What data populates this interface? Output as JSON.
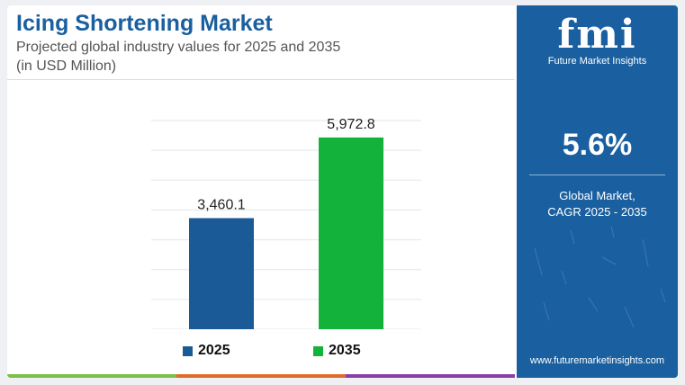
{
  "header": {
    "title": "Icing Shortening Market",
    "subtitle_line1": "Projected global industry values for 2025 and 2035",
    "subtitle_line2": "(in USD Million)"
  },
  "chart_data": {
    "type": "bar",
    "categories": [
      "2025",
      "2035"
    ],
    "values": [
      3460.1,
      5972.8
    ],
    "value_labels": [
      "3,460.1",
      "5,972.8"
    ],
    "colors": [
      "#1a5a96",
      "#13b23b"
    ],
    "title": "",
    "xlabel": "",
    "ylabel": "",
    "ylim": [
      0,
      6500
    ],
    "grid": true,
    "legend": "bottom"
  },
  "legend": {
    "items": [
      {
        "label": "2025",
        "color": "#1a5a96"
      },
      {
        "label": "2035",
        "color": "#13b23b"
      }
    ]
  },
  "sidebar": {
    "logo_mark": "fmi",
    "logo_text": "Future Market Insights",
    "cagr_value": "5.6%",
    "cagr_label_line1": "Global Market,",
    "cagr_label_line2": "CAGR 2025 - 2035",
    "website": "www.futuremarketinsights.com"
  },
  "bottom_bar_colors": [
    "#7bc043",
    "#e06b2c",
    "#8b3fa6"
  ]
}
